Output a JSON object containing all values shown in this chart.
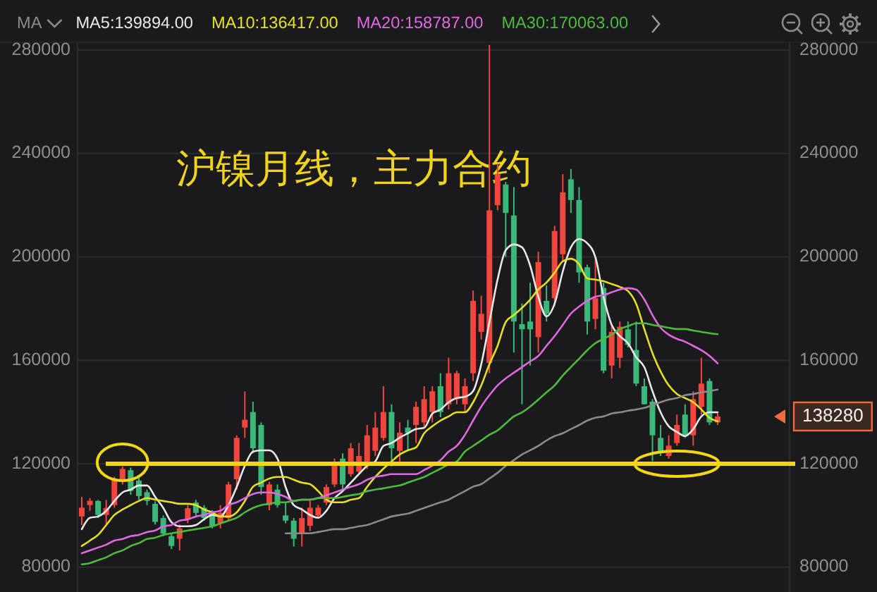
{
  "chart_data": {
    "type": "candlestick",
    "title": "沪镍月线，主力合约",
    "legend_title": "MA",
    "legend": "top left",
    "grid": "y",
    "categories": [
      null,
      null,
      null,
      null,
      null,
      null,
      null,
      null,
      null,
      null,
      null,
      null,
      null,
      null,
      null,
      null,
      null,
      null,
      null,
      null,
      null,
      null,
      null,
      null,
      null,
      null,
      null,
      null,
      null,
      null,
      null,
      null,
      null,
      null,
      null,
      null,
      null,
      null,
      null,
      null,
      null,
      null,
      null,
      null,
      null,
      null,
      null,
      null,
      null,
      null,
      null,
      null,
      null,
      null,
      null,
      null,
      null,
      null,
      null,
      null,
      null,
      null,
      null,
      null,
      null,
      null,
      null,
      null,
      null,
      null,
      null,
      null,
      null,
      null,
      null,
      null,
      null,
      null,
      null
    ],
    "ohlc": [
      [
        99600,
        107200,
        96300,
        103000
      ],
      [
        104000,
        106700,
        101800,
        105700
      ],
      [
        105600,
        106000,
        99000,
        100200
      ],
      [
        100200,
        106000,
        96000,
        102900
      ],
      [
        104000,
        115000,
        103000,
        114000
      ],
      [
        113800,
        119000,
        112000,
        118000
      ],
      [
        117500,
        118500,
        108000,
        109500
      ],
      [
        113500,
        115000,
        106000,
        107500
      ],
      [
        109000,
        110000,
        104000,
        105600
      ],
      [
        104500,
        105500,
        96500,
        97500
      ],
      [
        99000,
        100000,
        92000,
        93000
      ],
      [
        92000,
        93000,
        87000,
        88200
      ],
      [
        91000,
        96500,
        86500,
        95000
      ],
      [
        98400,
        104000,
        97000,
        102800
      ],
      [
        105000,
        106000,
        100000,
        101000
      ],
      [
        103000,
        104000,
        98000,
        99000
      ],
      [
        101000,
        102000,
        95000,
        96000
      ],
      [
        97000,
        104000,
        95000,
        101000
      ],
      [
        99000,
        113000,
        98000,
        112000
      ],
      [
        114000,
        131000,
        110000,
        130000
      ],
      [
        134000,
        148000,
        130000,
        137000
      ],
      [
        140000,
        144000,
        124000,
        126000
      ],
      [
        135000,
        136000,
        108000,
        111000
      ],
      [
        104000,
        113000,
        102000,
        112000
      ],
      [
        110000,
        112000,
        103000,
        104000
      ],
      [
        100000,
        105000,
        97000,
        98000
      ],
      [
        98000,
        99000,
        88000,
        91000
      ],
      [
        93000,
        103000,
        88000,
        99000
      ],
      [
        96000,
        106000,
        94000,
        103000
      ],
      [
        100000,
        104000,
        99000,
        103000
      ],
      [
        105000,
        112000,
        104000,
        111000
      ],
      [
        112000,
        122000,
        111000,
        120000
      ],
      [
        122000,
        124000,
        110000,
        112000
      ],
      [
        116000,
        128000,
        115000,
        126000
      ],
      [
        117000,
        128000,
        116000,
        123000
      ],
      [
        120000,
        135000,
        118000,
        131000
      ],
      [
        125000,
        140000,
        123000,
        134000
      ],
      [
        130000,
        150000,
        129000,
        140000
      ],
      [
        140000,
        143000,
        119000,
        126000
      ],
      [
        125000,
        136000,
        120000,
        132000
      ],
      [
        134000,
        137000,
        125000,
        132000
      ],
      [
        135000,
        144000,
        128000,
        142000
      ],
      [
        136000,
        150000,
        134000,
        145000
      ],
      [
        140000,
        150000,
        136000,
        148000
      ],
      [
        150000,
        155000,
        138000,
        140000
      ],
      [
        143000,
        161000,
        141000,
        155000
      ],
      [
        145000,
        156000,
        143000,
        155000
      ],
      [
        143000,
        153000,
        140000,
        150000
      ],
      [
        155000,
        187000,
        152000,
        183000
      ],
      [
        171000,
        185000,
        168000,
        178000
      ],
      [
        159000,
        282000,
        155000,
        218000
      ],
      [
        220000,
        236000,
        218000,
        232000
      ],
      [
        228000,
        229000,
        200000,
        217000
      ],
      [
        216000,
        227000,
        163000,
        175000
      ],
      [
        174000,
        182000,
        143000,
        172000
      ],
      [
        175000,
        190000,
        158000,
        172000
      ],
      [
        169000,
        202000,
        163000,
        198000
      ],
      [
        183000,
        189000,
        175000,
        178000
      ],
      [
        184000,
        212000,
        181000,
        210000
      ],
      [
        201000,
        232000,
        198000,
        225000
      ],
      [
        230000,
        234000,
        217000,
        222000
      ],
      [
        222000,
        227000,
        190000,
        194000
      ],
      [
        196000,
        197000,
        170000,
        175000
      ],
      [
        176000,
        200000,
        172000,
        184000
      ],
      [
        188000,
        190000,
        155000,
        156000
      ],
      [
        158000,
        174000,
        153000,
        171000
      ],
      [
        161000,
        175000,
        157000,
        173000
      ],
      [
        172000,
        175000,
        165000,
        166000
      ],
      [
        164000,
        175000,
        150000,
        151000
      ],
      [
        150000,
        153000,
        143000,
        143000
      ],
      [
        144000,
        145000,
        121000,
        131000
      ],
      [
        130000,
        135000,
        123000,
        125000
      ],
      [
        123000,
        131000,
        122000,
        127000
      ],
      [
        128000,
        139000,
        127000,
        135000
      ],
      [
        139000,
        143000,
        130000,
        131000
      ],
      [
        131000,
        148000,
        127000,
        145000
      ],
      [
        142000,
        161000,
        139000,
        151000
      ],
      [
        152000,
        153000,
        135000,
        136000
      ],
      [
        136000,
        139500,
        135000,
        138280
      ]
    ],
    "colors": [
      "#f1453d",
      "#f1453d",
      "#3bb77a",
      "#f1453d",
      "#f1453d",
      "#f1453d",
      "#3bb77a",
      "#3bb77a",
      "#3bb77a",
      "#3bb77a",
      "#3bb77a",
      "#3bb77a",
      "#f1453d",
      "#f1453d",
      "#3bb77a",
      "#3bb77a",
      "#3bb77a",
      "#f1453d",
      "#f1453d",
      "#f1453d",
      "#f1453d",
      "#3bb77a",
      "#3bb77a",
      "#f1453d",
      "#3bb77a",
      "#3bb77a",
      "#3bb77a",
      "#f1453d",
      "#f1453d",
      "#f1453d",
      "#f1453d",
      "#f1453d",
      "#3bb77a",
      "#f1453d",
      "#f1453d",
      "#f1453d",
      "#f1453d",
      "#f1453d",
      "#3bb77a",
      "#f1453d",
      "#3bb77a",
      "#f1453d",
      "#f1453d",
      "#f1453d",
      "#3bb77a",
      "#f1453d",
      "#f1453d",
      "#f1453d",
      "#f1453d",
      "#f1453d",
      "#f1453d",
      "#f1453d",
      "#3bb77a",
      "#3bb77a",
      "#3bb77a",
      "#3bb77a",
      "#f1453d",
      "#3bb77a",
      "#f1453d",
      "#f1453d",
      "#3bb77a",
      "#3bb77a",
      "#3bb77a",
      "#f1453d",
      "#3bb77a",
      "#f1453d",
      "#f1453d",
      "#3bb77a",
      "#3bb77a",
      "#3bb77a",
      "#3bb77a",
      "#3bb77a",
      "#f1453d",
      "#f1453d",
      "#3bb77a",
      "#f1453d",
      "#f1453d",
      "#3bb77a",
      "#f1453d"
    ],
    "series": [
      {
        "type": "line",
        "name": "MA5:139894.00",
        "color": "#e8e8e8",
        "values": [
          94700,
          99100,
          99600,
          101800,
          105600,
          108900,
          110000,
          111600,
          111600,
          107200,
          102900,
          97400,
          95800,
          95800,
          96300,
          98500,
          100200,
          99600,
          104000,
          111000,
          119200,
          124700,
          125200,
          125200,
          122000,
          111000,
          104000,
          102300,
          100200,
          99100,
          101800,
          106700,
          109400,
          112700,
          116000,
          119200,
          120900,
          126900,
          128000,
          130100,
          131800,
          133400,
          133900,
          139400,
          141000,
          143800,
          145400,
          145900,
          148100,
          158500,
          174800,
          191200,
          202600,
          204800,
          203700,
          196600,
          184600,
          177000,
          181900,
          194400,
          203700,
          206900,
          205300,
          199900,
          184600,
          173700,
          169400,
          166600,
          161200,
          157400,
          148100,
          139900,
          134500,
          132300,
          130700,
          133400,
          138300,
          139900,
          139900
        ]
      },
      {
        "type": "line",
        "name": "MA10:136417.00",
        "color": "#e6e01e",
        "values": [
          88200,
          90300,
          92500,
          96300,
          100200,
          102300,
          104000,
          105600,
          106700,
          106100,
          105600,
          105100,
          104500,
          104500,
          104000,
          102300,
          101200,
          99600,
          99600,
          101200,
          105600,
          111100,
          112700,
          114300,
          114900,
          114900,
          113800,
          112700,
          112100,
          109400,
          106100,
          105100,
          105100,
          106100,
          106700,
          111100,
          114900,
          118100,
          120900,
          123600,
          125200,
          126300,
          131800,
          134500,
          136700,
          138300,
          139900,
          139900,
          143800,
          150300,
          158500,
          165600,
          174800,
          177500,
          180300,
          183500,
          187400,
          190100,
          193900,
          198300,
          199300,
          197200,
          191700,
          191200,
          190600,
          189500,
          188400,
          186800,
          181900,
          172100,
          162800,
          155700,
          150300,
          147000,
          145400,
          143800,
          141000,
          137800,
          136400
        ]
      },
      {
        "type": "line",
        "name": "MA20:158787.00",
        "color": "#e068e0",
        "values": [
          85400,
          86500,
          87600,
          88700,
          90300,
          90900,
          92000,
          92500,
          93600,
          94200,
          95800,
          96300,
          98000,
          98500,
          99600,
          100200,
          101200,
          101800,
          104000,
          105100,
          106700,
          108300,
          108900,
          108900,
          108300,
          107200,
          105600,
          106100,
          106100,
          106700,
          107800,
          108900,
          110000,
          111100,
          112100,
          113800,
          114900,
          115400,
          116000,
          116000,
          116000,
          116000,
          117600,
          119200,
          121400,
          124700,
          126900,
          131200,
          136700,
          142100,
          146500,
          150300,
          153000,
          155200,
          157400,
          159600,
          161700,
          165600,
          169400,
          173700,
          178100,
          180800,
          183000,
          184600,
          185200,
          186300,
          187400,
          187900,
          187400,
          183500,
          177500,
          172600,
          169900,
          168300,
          167200,
          165600,
          163900,
          161700,
          158800
        ]
      },
      {
        "type": "line",
        "name": "MA30:170063.00",
        "color": "#4cbb3c",
        "values": [
          81100,
          81600,
          82700,
          83800,
          85400,
          86500,
          88200,
          89300,
          90900,
          91400,
          92500,
          93100,
          93600,
          94200,
          94700,
          95200,
          95800,
          96900,
          98000,
          99100,
          101200,
          102900,
          104000,
          104500,
          105100,
          105100,
          105600,
          106100,
          106100,
          106700,
          106700,
          106700,
          107200,
          107800,
          108300,
          109400,
          110000,
          110500,
          111100,
          111600,
          112700,
          113800,
          114900,
          116500,
          118100,
          119800,
          120900,
          124700,
          126900,
          129000,
          131200,
          132900,
          135600,
          138300,
          139900,
          142100,
          144800,
          147600,
          150300,
          154100,
          157400,
          160600,
          163900,
          166600,
          168300,
          169900,
          172100,
          173200,
          174300,
          174300,
          173700,
          173200,
          172600,
          172100,
          172100,
          171500,
          171000,
          170500,
          170100
        ]
      },
      {
        "type": "line",
        "color": "#8a8a8a",
        "values": [
          null,
          null,
          null,
          null,
          null,
          null,
          null,
          null,
          null,
          null,
          null,
          null,
          null,
          null,
          null,
          null,
          null,
          null,
          null,
          null,
          null,
          null,
          null,
          null,
          null,
          93100,
          93100,
          93100,
          93100,
          93600,
          94200,
          94700,
          94700,
          95200,
          95800,
          96300,
          97400,
          98500,
          99600,
          100200,
          100700,
          101800,
          102900,
          104000,
          105100,
          106100,
          107800,
          109400,
          111100,
          112100,
          114300,
          116500,
          119200,
          121400,
          123600,
          125200,
          126900,
          129000,
          130700,
          131800,
          133400,
          135000,
          136700,
          137800,
          138300,
          139400,
          139900,
          140500,
          141000,
          141600,
          142700,
          143800,
          144800,
          145400,
          146500,
          147000,
          147600,
          148100,
          148700
        ]
      }
    ],
    "ylim": [
      70400,
      283000
    ],
    "yticks": [
      80000,
      120000,
      160000,
      200000,
      240000,
      280000
    ],
    "y2lim": [
      70400,
      283000
    ],
    "y2ticks": [
      80000,
      120000,
      160000,
      200000,
      240000,
      280000
    ],
    "ref_lines": [
      {
        "axis": "y",
        "value": 120000,
        "color": "#f5d614"
      }
    ],
    "annotations": [
      "138280"
    ]
  }
}
